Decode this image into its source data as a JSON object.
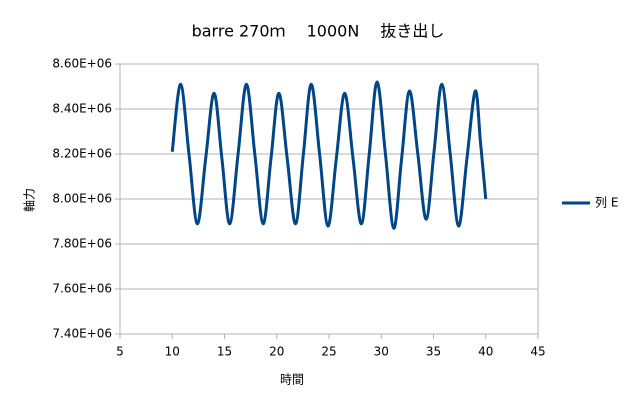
{
  "chart_data": {
    "type": "line",
    "title": "barre 270ｍ　 1000N　 抜き出し",
    "x_label": "時間",
    "y_label": "軸力",
    "x": [
      10,
      10.8,
      11.6,
      12.4,
      13.2,
      14.0,
      14.75,
      15.5,
      16.3,
      17.1,
      17.9,
      18.7,
      19.45,
      20.2,
      21.0,
      21.8,
      22.55,
      23.3,
      24.1,
      24.9,
      25.7,
      26.5,
      27.3,
      28.1,
      28.85,
      29.6,
      30.4,
      31.2,
      31.95,
      32.7,
      33.5,
      34.3,
      35.05,
      35.8,
      36.6,
      37.4,
      38.2,
      39.0,
      39.5,
      40
    ],
    "series": [
      {
        "name": "列 E",
        "color": "#004586",
        "values": [
          8210000,
          8510000,
          8200000,
          7890000,
          8180000,
          8470000,
          8180000,
          7890000,
          8200000,
          8510000,
          8200000,
          7890000,
          8180000,
          8470000,
          8180000,
          7890000,
          8200000,
          8510000,
          8200000,
          7880000,
          8180000,
          8470000,
          8180000,
          7890000,
          8200000,
          8520000,
          8200000,
          7870000,
          8180000,
          8480000,
          8200000,
          7910000,
          8210000,
          8510000,
          8200000,
          7880000,
          8180000,
          8480000,
          8250000,
          8000000
        ]
      }
    ],
    "xlim": [
      5,
      45
    ],
    "xticks": [
      5,
      10,
      15,
      20,
      25,
      30,
      35,
      40,
      45
    ],
    "ylim": [
      7400000,
      8600000
    ],
    "yticks": [
      {
        "value": 7400000,
        "label": "7.40E+06"
      },
      {
        "value": 7600000,
        "label": "7.60E+06"
      },
      {
        "value": 7800000,
        "label": "7.80E+06"
      },
      {
        "value": 8000000,
        "label": "8.00E+06"
      },
      {
        "value": 8200000,
        "label": "8.20E+06"
      },
      {
        "value": 8400000,
        "label": "8.40E+06"
      },
      {
        "value": 8600000,
        "label": "8.60E+06"
      }
    ],
    "grid": true,
    "legend": "right"
  }
}
